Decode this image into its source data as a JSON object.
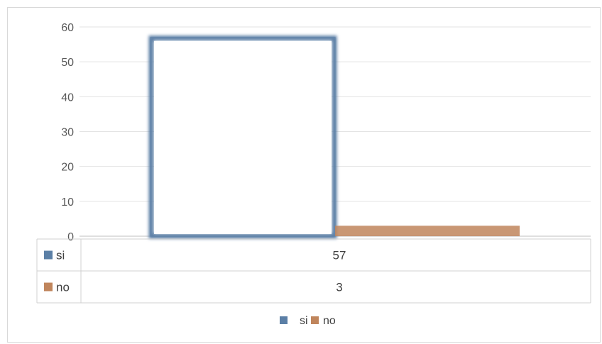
{
  "chart_data": {
    "type": "bar",
    "categories": [
      ""
    ],
    "series": [
      {
        "name": "si",
        "values": [
          57
        ],
        "color": "#5b7fa6"
      },
      {
        "name": "no",
        "values": [
          3
        ],
        "color": "#c0855c"
      }
    ],
    "title": "",
    "xlabel": "",
    "ylabel": "",
    "ylim": [
      0,
      60
    ],
    "yticks": [
      "0",
      "10",
      "20",
      "30",
      "40",
      "50",
      "60"
    ],
    "grid": true,
    "legend": "bottom",
    "data_table": {
      "rows": [
        {
          "label": "si",
          "value": "57"
        },
        {
          "label": "no",
          "value": "3"
        }
      ]
    }
  }
}
